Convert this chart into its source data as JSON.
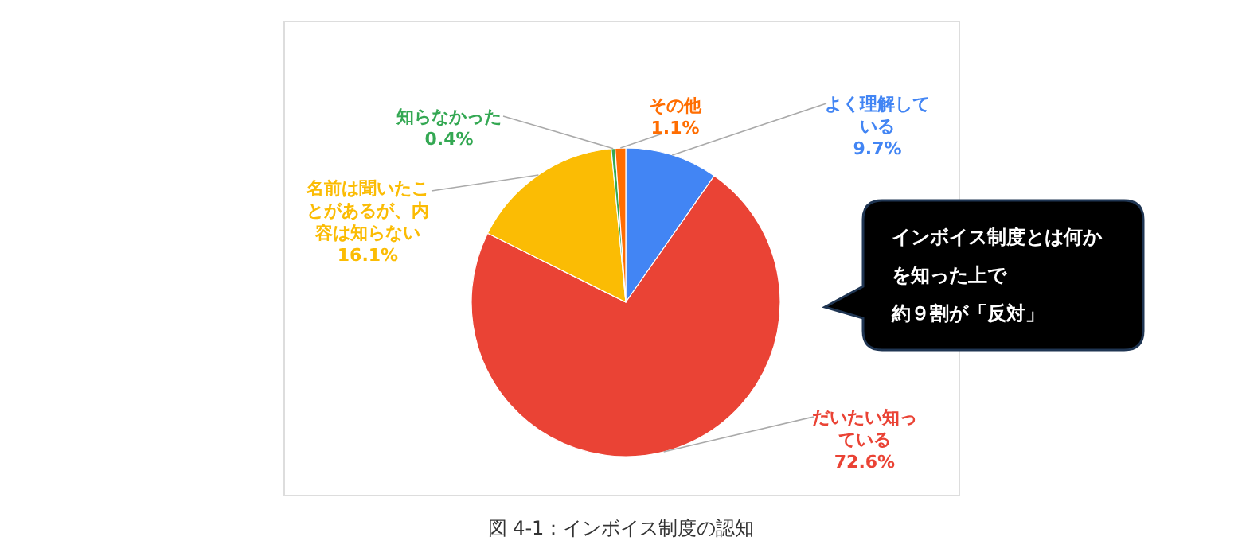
{
  "chart_data": {
    "type": "pie",
    "title": "図 4-1：インボイス制度の認知",
    "categories": [
      "よく理解している",
      "だいたい知っている",
      "名前は聞いたことがあるが、内容は知らない",
      "知らなかった",
      "その他"
    ],
    "values": [
      9.7,
      72.6,
      16.1,
      0.4,
      1.1
    ],
    "value_labels": [
      "9.7%",
      "72.6%",
      "16.1%",
      "0.4%",
      "1.1%"
    ],
    "colors": [
      "#4285f4",
      "#ea4335",
      "#fbbc04",
      "#34a853",
      "#ff6d01"
    ],
    "annotations": [
      "インボイス制度とは何かを知った上で約９割が「反対」"
    ],
    "legend": false
  }
}
